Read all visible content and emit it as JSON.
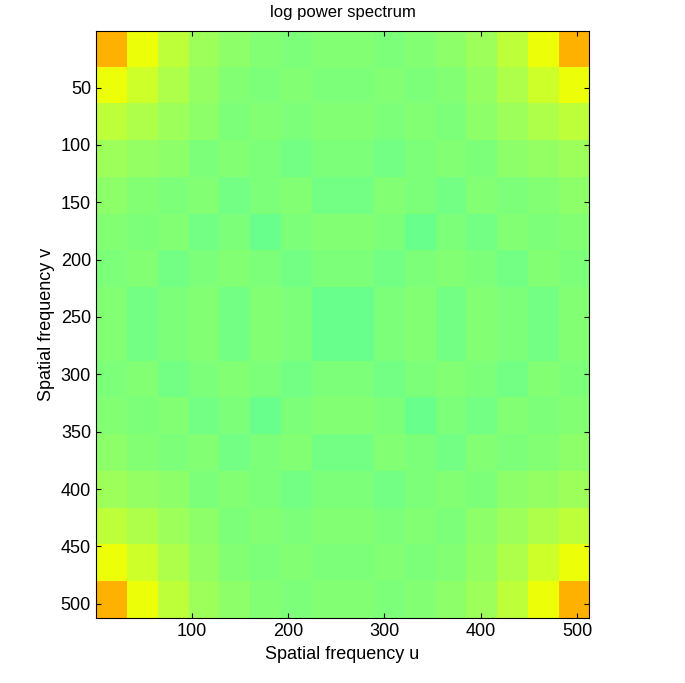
{
  "chart_data": {
    "type": "heatmap",
    "title": "log power spectrum",
    "x_label": "Spatial frequency u",
    "y_label": "Spatial frequency v",
    "xlim": [
      0.5,
      512.5
    ],
    "ylim": [
      512.5,
      0.5
    ],
    "xticks": [
      100,
      200,
      300,
      400,
      500
    ],
    "yticks": [
      50,
      100,
      150,
      200,
      250,
      300,
      350,
      400,
      450,
      500
    ],
    "color_range": [
      0,
      10
    ],
    "cells": [
      [
        7.2,
        6.4,
        5.8,
        5.4,
        5.2,
        5.1,
        5.0,
        5.1,
        5.1,
        5.0,
        5.1,
        5.2,
        5.4,
        5.8,
        6.4,
        7.2
      ],
      [
        6.4,
        6.0,
        5.6,
        5.3,
        5.1,
        5.0,
        5.1,
        5.0,
        5.0,
        5.1,
        5.0,
        5.1,
        5.3,
        5.6,
        6.0,
        6.4
      ],
      [
        5.8,
        5.6,
        5.4,
        5.2,
        5.0,
        5.1,
        5.0,
        5.1,
        5.1,
        5.0,
        5.1,
        5.0,
        5.2,
        5.4,
        5.6,
        5.8
      ],
      [
        5.4,
        5.3,
        5.2,
        5.0,
        5.1,
        5.0,
        4.9,
        5.0,
        5.0,
        4.9,
        5.0,
        5.1,
        5.0,
        5.2,
        5.3,
        5.4
      ],
      [
        5.2,
        5.1,
        5.0,
        5.1,
        4.9,
        5.0,
        5.1,
        4.9,
        4.9,
        5.1,
        5.0,
        4.9,
        5.1,
        5.0,
        5.1,
        5.2
      ],
      [
        5.1,
        5.0,
        5.1,
        4.9,
        5.0,
        4.8,
        5.0,
        5.1,
        5.1,
        5.0,
        4.8,
        5.0,
        4.9,
        5.1,
        5.0,
        5.1
      ],
      [
        5.0,
        5.1,
        4.9,
        5.0,
        5.1,
        5.0,
        4.9,
        5.0,
        5.0,
        4.9,
        5.0,
        5.1,
        5.0,
        4.9,
        5.1,
        5.0
      ],
      [
        5.1,
        4.9,
        5.0,
        5.1,
        4.9,
        5.1,
        5.0,
        4.8,
        4.8,
        5.0,
        5.1,
        4.9,
        5.1,
        5.0,
        4.9,
        5.1
      ],
      [
        5.1,
        4.9,
        5.0,
        5.1,
        4.9,
        5.1,
        5.0,
        4.8,
        4.8,
        5.0,
        5.1,
        4.9,
        5.1,
        5.0,
        4.9,
        5.1
      ],
      [
        5.0,
        5.1,
        4.9,
        5.0,
        5.1,
        5.0,
        4.9,
        5.0,
        5.0,
        4.9,
        5.0,
        5.1,
        5.0,
        4.9,
        5.1,
        5.0
      ],
      [
        5.1,
        5.0,
        5.1,
        4.9,
        5.0,
        4.8,
        5.0,
        5.1,
        5.1,
        5.0,
        4.8,
        5.0,
        4.9,
        5.1,
        5.0,
        5.1
      ],
      [
        5.2,
        5.1,
        5.0,
        5.1,
        4.9,
        5.0,
        5.1,
        4.9,
        4.9,
        5.1,
        5.0,
        4.9,
        5.1,
        5.0,
        5.1,
        5.2
      ],
      [
        5.4,
        5.3,
        5.2,
        5.0,
        5.1,
        5.0,
        4.9,
        5.0,
        5.0,
        4.9,
        5.0,
        5.1,
        5.0,
        5.2,
        5.3,
        5.4
      ],
      [
        5.8,
        5.6,
        5.4,
        5.2,
        5.0,
        5.1,
        5.0,
        5.1,
        5.1,
        5.0,
        5.1,
        5.0,
        5.2,
        5.4,
        5.6,
        5.8
      ],
      [
        6.4,
        6.0,
        5.6,
        5.3,
        5.1,
        5.0,
        5.1,
        5.0,
        5.0,
        5.1,
        5.0,
        5.1,
        5.3,
        5.6,
        6.0,
        6.4
      ],
      [
        7.2,
        6.4,
        5.8,
        5.4,
        5.2,
        5.1,
        5.0,
        5.1,
        5.1,
        5.0,
        5.1,
        5.2,
        5.4,
        5.8,
        6.4,
        7.2
      ]
    ]
  }
}
